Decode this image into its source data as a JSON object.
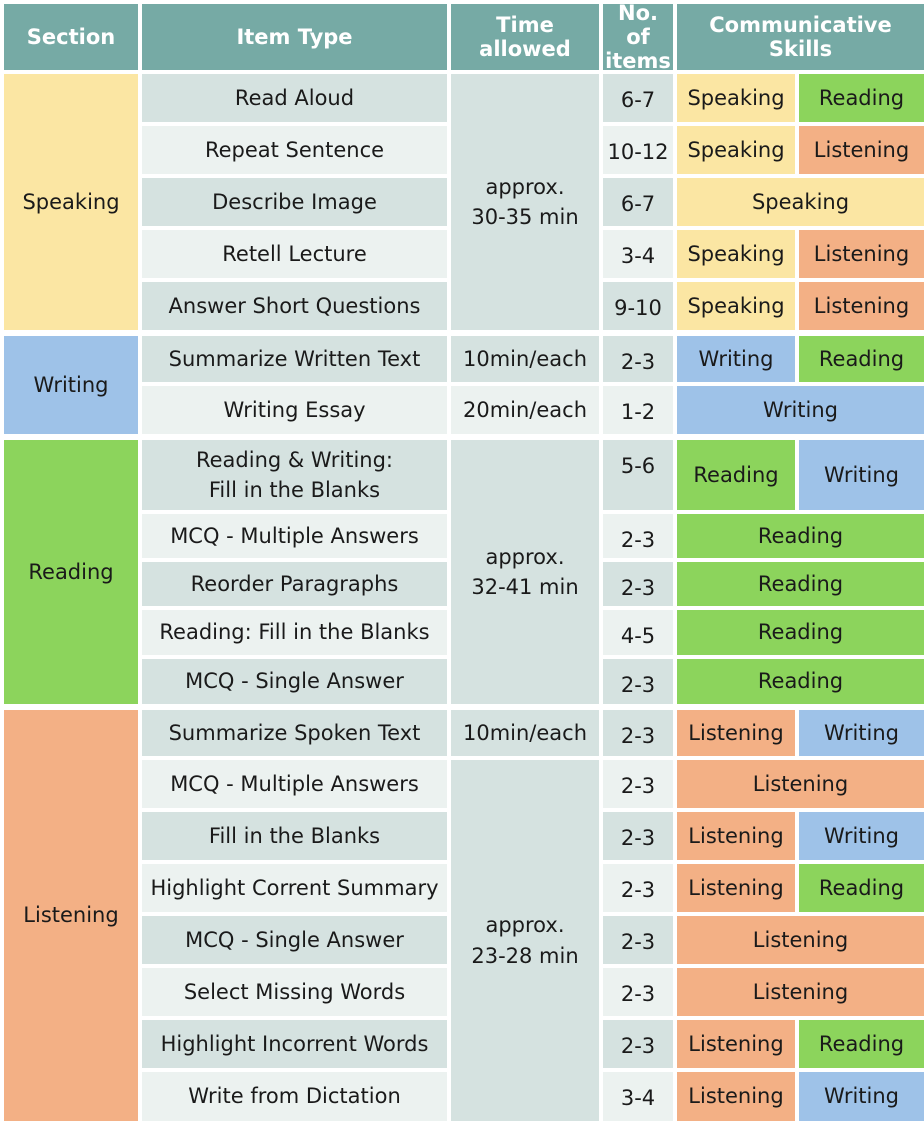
{
  "headers": [
    "Section",
    "Item Type",
    "Time allowed",
    "No. of\nitems",
    "Communicative Skills"
  ],
  "colors": {
    "header": "#76aaa5",
    "cell_dark": "#d5e2e0",
    "cell_light": "#ecf2f0",
    "Speaking": "#fbe6a3",
    "Writing": "#9ec2e8",
    "Reading": "#8cd45c",
    "Listening": "#f3b085"
  },
  "sections": [
    {
      "name": "Speaking",
      "class": "sp",
      "times": [
        {
          "text": "approx.\n30-35 min",
          "rows": 5
        }
      ],
      "items": [
        {
          "type": "Read Aloud",
          "count": "6-7",
          "skills": [
            "Speaking",
            "Reading"
          ]
        },
        {
          "type": "Repeat Sentence",
          "count": "10-12",
          "skills": [
            "Speaking",
            "Listening"
          ]
        },
        {
          "type": "Describe Image",
          "count": "6-7",
          "skills": [
            "Speaking"
          ]
        },
        {
          "type": "Retell Lecture",
          "count": "3-4",
          "skills": [
            "Speaking",
            "Listening"
          ]
        },
        {
          "type": "Answer Short Questions",
          "count": "9-10",
          "skills": [
            "Speaking",
            "Listening"
          ]
        }
      ]
    },
    {
      "name": "Writing",
      "class": "wr",
      "times": [
        {
          "text": "10min/each",
          "rows": 1
        },
        {
          "text": "20min/each",
          "rows": 1
        }
      ],
      "items": [
        {
          "type": "Summarize Written Text",
          "count": "2-3",
          "skills": [
            "Writing",
            "Reading"
          ]
        },
        {
          "type": "Writing Essay",
          "count": "1-2",
          "skills": [
            "Writing"
          ]
        }
      ]
    },
    {
      "name": "Reading",
      "class": "rd",
      "times": [
        {
          "text": "approx.\n32-41 min",
          "rows": 5
        }
      ],
      "items": [
        {
          "type": "Reading & Writing:\nFill in the Blanks",
          "count": "5-6",
          "skills": [
            "Reading",
            "Writing"
          ]
        },
        {
          "type": "MCQ - Multiple Answers",
          "count": "2-3",
          "skills": [
            "Reading"
          ]
        },
        {
          "type": "Reorder Paragraphs",
          "count": "2-3",
          "skills": [
            "Reading"
          ]
        },
        {
          "type": "Reading: Fill in the Blanks",
          "count": "4-5",
          "skills": [
            "Reading"
          ]
        },
        {
          "type": "MCQ - Single Answer",
          "count": "2-3",
          "skills": [
            "Reading"
          ]
        }
      ]
    },
    {
      "name": "Listening",
      "class": "ls",
      "times": [
        {
          "text": "10min/each",
          "rows": 1
        },
        {
          "text": "approx.\n23-28 min",
          "rows": 7
        }
      ],
      "items": [
        {
          "type": "Summarize Spoken Text",
          "count": "2-3",
          "skills": [
            "Listening",
            "Writing"
          ]
        },
        {
          "type": "MCQ - Multiple Answers",
          "count": "2-3",
          "skills": [
            "Listening"
          ]
        },
        {
          "type": "Fill in the Blanks",
          "count": "2-3",
          "skills": [
            "Listening",
            "Writing"
          ]
        },
        {
          "type": "Highlight Corrent Summary",
          "count": "2-3",
          "skills": [
            "Listening",
            "Reading"
          ]
        },
        {
          "type": "MCQ - Single Answer",
          "count": "2-3",
          "skills": [
            "Listening"
          ]
        },
        {
          "type": "Select Missing Words",
          "count": "2-3",
          "skills": [
            "Listening"
          ]
        },
        {
          "type": "Highlight Incorrent Words",
          "count": "2-3",
          "skills": [
            "Listening",
            "Reading"
          ]
        },
        {
          "type": "Write from Dictation",
          "count": "3-4",
          "skills": [
            "Listening",
            "Writing"
          ]
        }
      ]
    }
  ]
}
